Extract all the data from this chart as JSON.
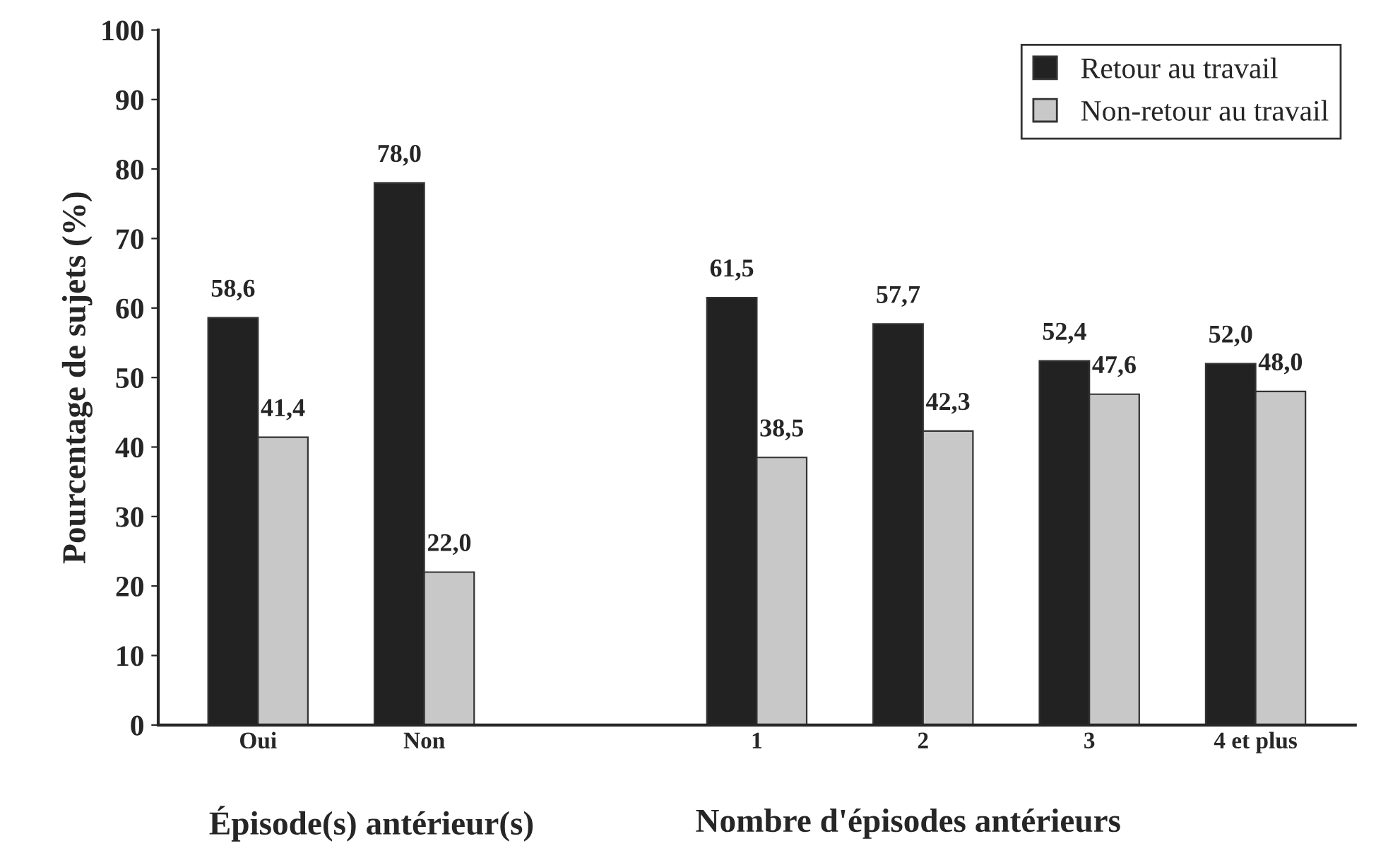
{
  "chart_data": {
    "type": "bar",
    "ylabel": "Pourcentage de sujets (%)",
    "categories": [
      "Oui",
      "Non",
      null,
      "1",
      "2",
      "3",
      "4 et plus"
    ],
    "series": [
      {
        "name": "Retour au travail",
        "color": "#222222",
        "values": [
          58.6,
          78.0,
          null,
          61.5,
          57.7,
          52.4,
          52.0
        ],
        "value_labels": [
          "58,6",
          "78,0",
          null,
          "61,5",
          "57,7",
          "52,4",
          "52,0"
        ]
      },
      {
        "name": "Non-retour au travail",
        "color": "#c8c8c8",
        "values": [
          41.4,
          22.0,
          null,
          38.5,
          42.3,
          47.6,
          48.0
        ],
        "value_labels": [
          "41,4",
          "22,0",
          null,
          "38,5",
          "42,3",
          "47,6",
          "48,0"
        ]
      }
    ],
    "ylim": [
      0,
      100
    ],
    "yticks": [
      0,
      10,
      20,
      30,
      40,
      50,
      60,
      70,
      80,
      90,
      100
    ],
    "legend": "top right",
    "grid": false,
    "annotations": [
      "Épisode(s) antérieur(s)",
      "Nombre d'épisodes antérieurs"
    ]
  }
}
